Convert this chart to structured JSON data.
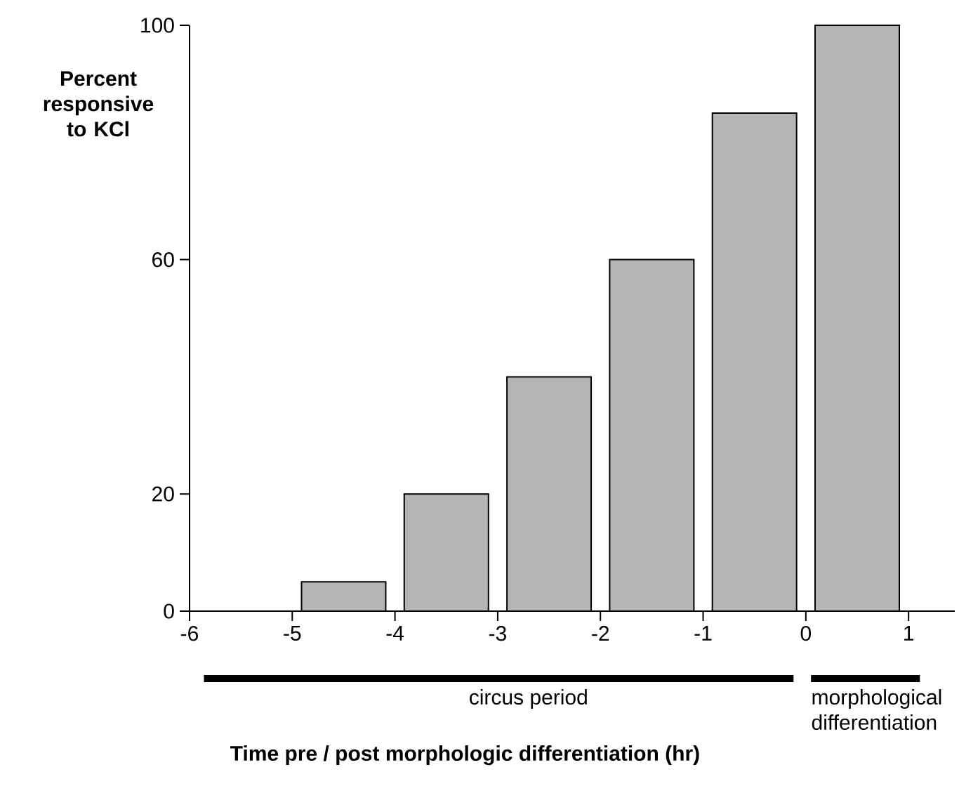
{
  "chart_data": {
    "type": "bar",
    "x": [
      -4.5,
      -3.5,
      -2.5,
      -1.5,
      -0.5,
      0.5
    ],
    "values": [
      5,
      20,
      40,
      60,
      85,
      100
    ],
    "color": "#b4b4b4",
    "xlabel": "Time pre / post morphologic differentiation (hr)",
    "ylabel": "Percent responsive to KCl",
    "xlim": [
      -6,
      1.45
    ],
    "ylim": [
      0,
      100
    ],
    "xticks": [
      -6,
      -5,
      -4,
      -3,
      -2,
      -1,
      0,
      1
    ],
    "yticks": [
      0,
      20,
      60,
      100
    ],
    "annotations": [
      "circus period",
      "morphological differentiation"
    ]
  }
}
